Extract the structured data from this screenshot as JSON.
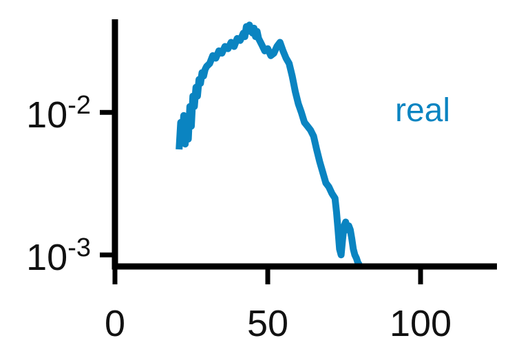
{
  "chart_data": {
    "type": "line",
    "title": "",
    "xlabel": "",
    "ylabel": "",
    "xlim": [
      0,
      125
    ],
    "ylim": [
      0.00083,
      0.045
    ],
    "yscale": "log",
    "grid": false,
    "legend": "none",
    "x_ticks": [
      {
        "value": 0,
        "label": "0"
      },
      {
        "value": 50,
        "label": "50"
      },
      {
        "value": 100,
        "label": "100"
      }
    ],
    "y_ticks": [
      {
        "value": 0.01,
        "base": "10",
        "exp": "-2"
      },
      {
        "value": 0.001,
        "base": "10",
        "exp": "-3"
      }
    ],
    "series_label": "real",
    "color": "#0a84c1",
    "series": [
      {
        "x": [
          21,
          21.5,
          22,
          22.5,
          23,
          23.5,
          24,
          24.5,
          25,
          25.5,
          26,
          26.5,
          27,
          27.5,
          28,
          28.5,
          29,
          29.5,
          30,
          31,
          32,
          33,
          34,
          35,
          36,
          37,
          38,
          39,
          40,
          41,
          42,
          42.5,
          43,
          43.5,
          44,
          44.5,
          45,
          45.5,
          46,
          46.5,
          47,
          48,
          49,
          50,
          51,
          52,
          53,
          54,
          55,
          56,
          57,
          58,
          59,
          60,
          61,
          62,
          63,
          64,
          65,
          66,
          67,
          68,
          69,
          70,
          71,
          72,
          72.5,
          73,
          73.5,
          74,
          74.5,
          75,
          75.5,
          76,
          76.5,
          77,
          77.5,
          78,
          78.5,
          79,
          79.5,
          80
        ],
        "y": [
          0.0055,
          0.0085,
          0.0062,
          0.0095,
          0.006,
          0.0088,
          0.0065,
          0.011,
          0.008,
          0.013,
          0.011,
          0.015,
          0.013,
          0.017,
          0.016,
          0.019,
          0.018,
          0.02,
          0.021,
          0.022,
          0.025,
          0.024,
          0.027,
          0.026,
          0.029,
          0.028,
          0.031,
          0.029,
          0.033,
          0.032,
          0.036,
          0.034,
          0.04,
          0.037,
          0.041,
          0.038,
          0.036,
          0.039,
          0.034,
          0.037,
          0.033,
          0.03,
          0.027,
          0.028,
          0.025,
          0.026,
          0.029,
          0.031,
          0.027,
          0.024,
          0.022,
          0.018,
          0.014,
          0.0115,
          0.01,
          0.0085,
          0.008,
          0.0075,
          0.0068,
          0.0055,
          0.0045,
          0.0038,
          0.0032,
          0.003,
          0.0027,
          0.0025,
          0.002,
          0.0015,
          0.0011,
          0.001,
          0.0013,
          0.0016,
          0.0017,
          0.0015,
          0.0016,
          0.0015,
          0.0013,
          0.0011,
          0.001,
          0.00095,
          0.00088,
          0.00085
        ]
      }
    ]
  }
}
